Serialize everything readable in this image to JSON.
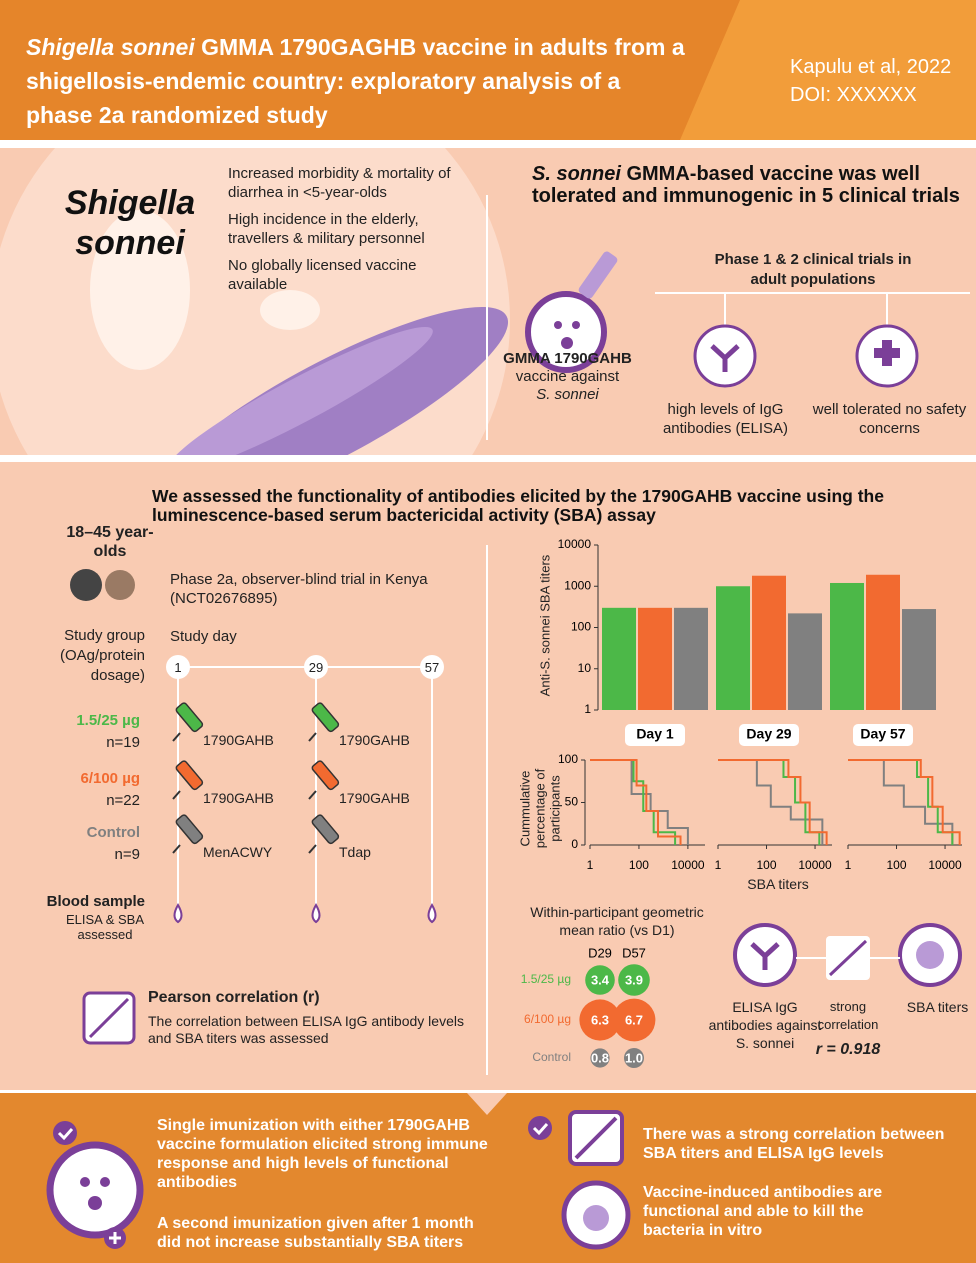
{
  "header": {
    "title_italic": "Shigella sonnei",
    "title_rest": "GMMA 1790GAGHB vaccine in adults from a shigellosis-endemic country: exploratory analysis of a phase 2a randomized study",
    "authors": "Kapulu et al, 2022",
    "doi": "DOI: XXXXXX"
  },
  "intro": {
    "organism": "Shigella sonnei",
    "facts": [
      "Increased morbidity & mortality of diarrhea in <5-year-olds",
      "High incidence in the elderly, travellers & military personnel",
      "No globally licensed vaccine available"
    ]
  },
  "trials": {
    "heading_italic": "S. sonnei",
    "heading_rest": "GMMA-based vaccine was well tolerated and immunogenic in 5 clinical trials",
    "vaccine_name": "GMMA 1790GAHB",
    "vaccine_desc": "vaccine against",
    "vaccine_target": "S. sonnei",
    "phase": "Phase 1 & 2 clinical trials in adult populations",
    "results": [
      "high levels of IgG antibodies (ELISA)",
      "well tolerated no safety concerns"
    ]
  },
  "study": {
    "heading": "We assessed the functionality of antibodies elicited by the 1790GAHB vaccine using the luminescence-based serum bactericidal activity (SBA) assay",
    "age": "18–45 year-olds",
    "trial": "Phase 2a, observer-blind trial in Kenya (NCT02676895)",
    "group_label": "Study group (OAg/protein dosage)",
    "day_label": "Study day",
    "days": [
      "1",
      "29",
      "57"
    ],
    "groups": [
      {
        "dose": "1.5/25 µg",
        "n": "n=19",
        "color": "#4cb848",
        "vaccines": [
          "1790GAHB",
          "1790GAHB"
        ]
      },
      {
        "dose": "6/100 µg",
        "n": "n=22",
        "color": "#f26a30",
        "vaccines": [
          "1790GAHB",
          "1790GAHB"
        ]
      },
      {
        "dose": "Control",
        "n": "n=9",
        "color": "#808080",
        "vaccines": [
          "MenACWY",
          "Tdap"
        ]
      }
    ],
    "blood_title": "Blood sample",
    "blood_desc": "ELISA & SBA assessed",
    "pearson_title": "Pearson correlation (r)",
    "pearson_desc": "The correlation between ELISA IgG antibody levels and SBA titers was assessed"
  },
  "bar_chart": {
    "type": "bar",
    "y_label": "Anti-S. sonnei SBA titers",
    "log_y": true,
    "ylim": [
      1,
      10000
    ],
    "yticks": [
      1,
      10,
      100,
      1000,
      10000
    ],
    "categories": [
      "Day 1",
      "Day 29",
      "Day 57"
    ],
    "series": [
      {
        "color": "#4cb848",
        "values": [
          300,
          1000,
          1200
        ]
      },
      {
        "color": "#f26a30",
        "values": [
          300,
          1800,
          1900
        ]
      },
      {
        "color": "#808080",
        "values": [
          300,
          220,
          280
        ]
      }
    ]
  },
  "cumulative_chart": {
    "type": "line",
    "y_label": "Cummulative percentage of participants",
    "x_label": "SBA titers",
    "log_x": true,
    "xlim": [
      1,
      50000
    ],
    "xticks": [
      1,
      100,
      10000
    ],
    "ylim": [
      0,
      100
    ],
    "yticks": [
      0,
      50,
      100
    ],
    "panels": [
      {
        "series": [
          {
            "color": "#808080",
            "x": [
              1,
              10,
              50,
              300,
              1500,
              10000
            ],
            "values": [
              100,
              100,
              60,
              40,
              20,
              0
            ]
          },
          {
            "color": "#4cb848",
            "x": [
              1,
              30,
              60,
              150,
              400,
              3000
            ],
            "values": [
              100,
              100,
              75,
              40,
              15,
              0
            ]
          },
          {
            "color": "#f26a30",
            "x": [
              1,
              40,
              80,
              200,
              600,
              5000
            ],
            "values": [
              100,
              100,
              70,
              40,
              10,
              0
            ]
          }
        ]
      },
      {
        "series": [
          {
            "color": "#808080",
            "x": [
              1,
              5,
              40,
              150,
              1000,
              20000
            ],
            "values": [
              100,
              100,
              70,
              45,
              30,
              0
            ]
          },
          {
            "color": "#4cb848",
            "x": [
              1,
              200,
              500,
              1500,
              4000,
              15000
            ],
            "values": [
              100,
              100,
              80,
              50,
              15,
              0
            ]
          },
          {
            "color": "#f26a30",
            "x": [
              1,
              300,
              800,
              2500,
              6000,
              30000
            ],
            "values": [
              100,
              100,
              80,
              50,
              15,
              0
            ]
          }
        ]
      },
      {
        "series": [
          {
            "color": "#808080",
            "x": [
              1,
              4,
              30,
              200,
              1500,
              20000
            ],
            "values": [
              100,
              100,
              70,
              45,
              25,
              0
            ]
          },
          {
            "color": "#4cb848",
            "x": [
              1,
              300,
              700,
              2000,
              5000,
              20000
            ],
            "values": [
              100,
              100,
              80,
              45,
              15,
              0
            ]
          },
          {
            "color": "#f26a30",
            "x": [
              1,
              400,
              1000,
              3000,
              8000,
              40000
            ],
            "values": [
              100,
              100,
              80,
              45,
              15,
              0
            ]
          }
        ]
      }
    ]
  },
  "gmr": {
    "label": "Within-participant geometric mean ratio (vs D1)",
    "columns": [
      "D29",
      "D57"
    ],
    "rows": [
      {
        "group": "1.5/25 µg",
        "color": "#4cb848",
        "values": [
          3.4,
          3.9
        ]
      },
      {
        "group": "6/100 µg",
        "color": "#f26a30",
        "values": [
          6.3,
          6.7
        ]
      },
      {
        "group": "Control",
        "color": "#808080",
        "values": [
          0.8,
          1.0
        ],
        "value_labels": [
          "0.8",
          "1.0"
        ]
      }
    ]
  },
  "correlation": {
    "items": [
      "ELISA IgG antibodies against S. sonnei",
      "strong correlation",
      "SBA titers"
    ],
    "r_label": "r = 0.918"
  },
  "conclusions": {
    "left": [
      "Single imunization with either 1790GAHB vaccine formulation elicited strong immune response and high levels of functional antibodies",
      "A second imunization given after 1 month did not increase substantially SBA titers"
    ],
    "right": [
      "There was a strong correlation between SBA titers and ELISA IgG levels",
      "Vaccine-induced antibodies are functional and able to kill the bacteria in vitro"
    ]
  }
}
